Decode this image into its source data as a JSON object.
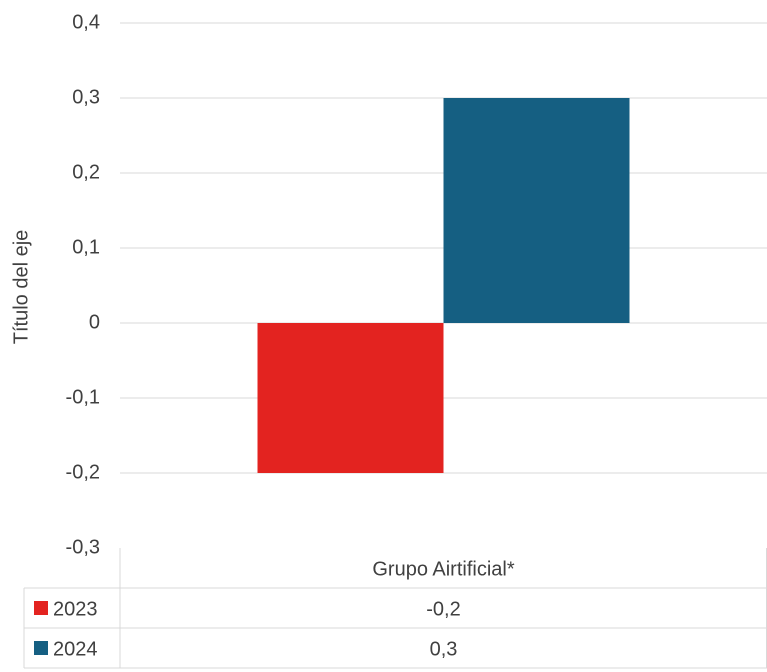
{
  "chart_data": {
    "type": "bar",
    "y_label": "Título del eje",
    "categories": [
      "Grupo Airtificial*"
    ],
    "series": [
      {
        "name": "2023",
        "color": "#e32320",
        "values": [
          -0.2
        ],
        "value_labels": [
          "-0,2"
        ]
      },
      {
        "name": "2024",
        "color": "#155f82",
        "values": [
          0.3
        ],
        "value_labels": [
          "0,3"
        ]
      }
    ],
    "ylim": [
      -0.3,
      0.4
    ],
    "yticks": [
      {
        "value": -0.3,
        "label": "-0,3"
      },
      {
        "value": -0.2,
        "label": "-0,2"
      },
      {
        "value": -0.1,
        "label": "-0,1"
      },
      0,
      {
        "value": 0.1,
        "label": "0,1"
      },
      {
        "value": 0.2,
        "label": "0,2"
      },
      {
        "value": 0.3,
        "label": "0,3"
      },
      {
        "value": 0.4,
        "label": "0,4"
      }
    ],
    "grid": true,
    "data_table": true
  }
}
